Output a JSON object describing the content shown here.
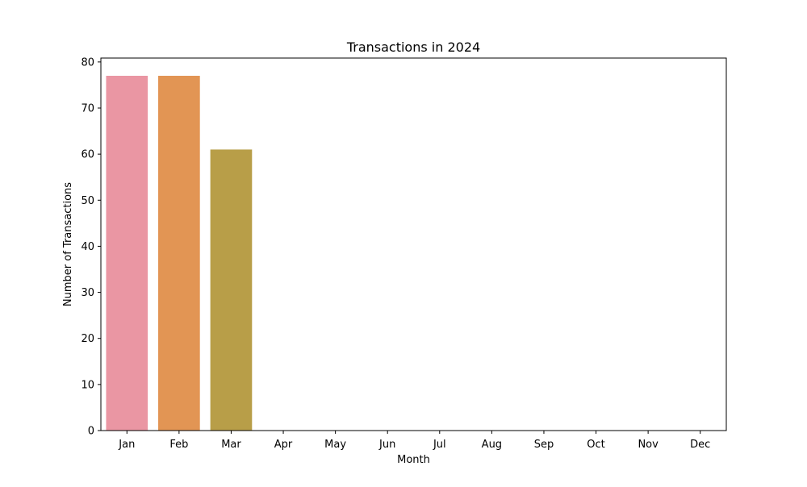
{
  "chart_data": {
    "type": "bar",
    "title": "Transactions in 2024",
    "xlabel": "Month",
    "ylabel": "Number of Transactions",
    "categories": [
      "Jan",
      "Feb",
      "Mar",
      "Apr",
      "May",
      "Jun",
      "Jul",
      "Aug",
      "Sep",
      "Oct",
      "Nov",
      "Dec"
    ],
    "values": [
      77,
      77,
      61,
      0,
      0,
      0,
      0,
      0,
      0,
      0,
      0,
      0
    ],
    "ylim": [
      0,
      80.85
    ],
    "yticks": [
      0,
      10,
      20,
      30,
      40,
      50,
      60,
      70,
      80
    ],
    "ytick_labels": [
      "0",
      "10",
      "20",
      "30",
      "40",
      "50",
      "60",
      "70",
      "80"
    ],
    "grid": false,
    "colors": [
      "#ea96a3",
      "#e29554",
      "#b89e48",
      "#a7a63f",
      "#89ae44",
      "#4fb25a",
      "#50b19a",
      "#53aeb5",
      "#57a9d3",
      "#8e9ee6",
      "#c08ee5",
      "#e48bd2"
    ]
  }
}
